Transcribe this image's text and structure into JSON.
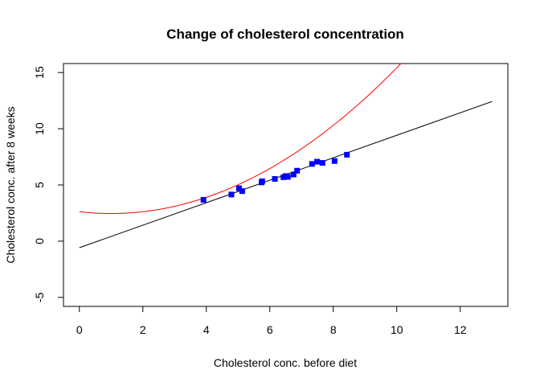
{
  "chart_data": {
    "type": "scatter",
    "title": "Change of cholesterol concentration",
    "xlabel": "Cholesterol conc. before diet",
    "ylabel": "Cholesterol conc. after 8 weeks",
    "xlim": [
      -0.5,
      13.5
    ],
    "ylim": [
      -5.8,
      15.8
    ],
    "x_ticks": [
      0,
      2,
      4,
      6,
      8,
      10,
      12
    ],
    "y_ticks": [
      -5,
      0,
      5,
      10,
      15
    ],
    "grid": false,
    "points": {
      "color": "#0000ff",
      "marker": "square",
      "x": [
        3.91,
        4.79,
        5.03,
        5.13,
        5.74,
        5.76,
        6.16,
        6.43,
        6.5,
        6.57,
        6.75,
        6.86,
        7.33,
        7.49,
        7.66,
        8.04,
        8.43
      ],
      "y": [
        3.68,
        4.15,
        4.71,
        4.45,
        5.23,
        5.33,
        5.54,
        5.69,
        5.79,
        5.72,
        5.93,
        6.27,
        6.87,
        7.07,
        6.96,
        7.13,
        7.69
      ]
    },
    "lines": [
      {
        "type": "linear",
        "color": "#000000",
        "x_range": [
          0,
          13
        ],
        "intercept": -0.58,
        "slope": 1.0
      },
      {
        "type": "quadratic",
        "color": "#ff0000",
        "x_range": [
          0,
          11.4
        ],
        "a": 0.16,
        "b": -0.32,
        "c": 2.62
      }
    ]
  }
}
